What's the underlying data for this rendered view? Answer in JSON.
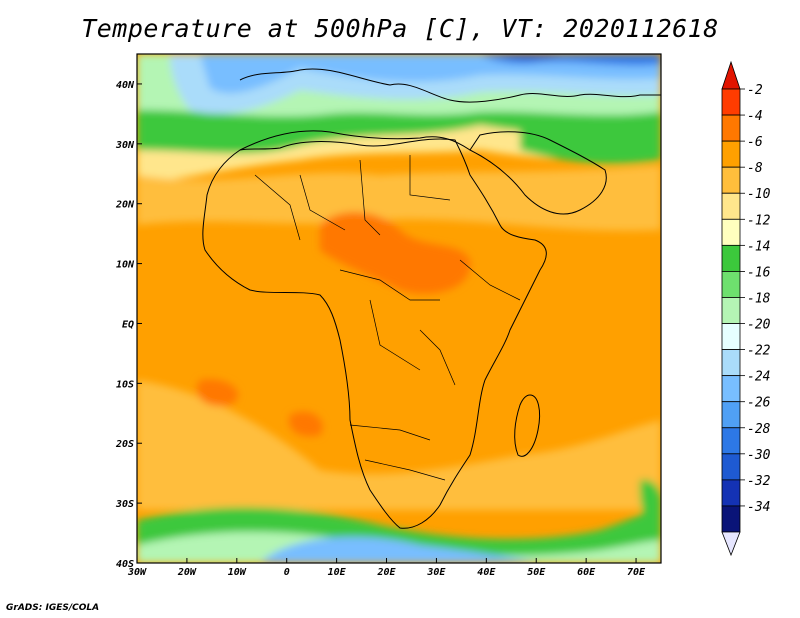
{
  "title": "Temperature at 500hPa [C], VT: 2020112618",
  "credit": "GrADS: IGES/COLA",
  "map": {
    "lon_range": [
      -30,
      75
    ],
    "lat_range": [
      -40,
      45
    ],
    "lon_ticks": [
      {
        "value": -30,
        "label": "30W"
      },
      {
        "value": -20,
        "label": "20W"
      },
      {
        "value": -10,
        "label": "10W"
      },
      {
        "value": 0,
        "label": "0"
      },
      {
        "value": 10,
        "label": "10E"
      },
      {
        "value": 20,
        "label": "20E"
      },
      {
        "value": 30,
        "label": "30E"
      },
      {
        "value": 40,
        "label": "40E"
      },
      {
        "value": 50,
        "label": "50E"
      },
      {
        "value": 60,
        "label": "60E"
      },
      {
        "value": 70,
        "label": "70E"
      }
    ],
    "lat_ticks": [
      {
        "value": 40,
        "label": "40N"
      },
      {
        "value": 30,
        "label": "30N"
      },
      {
        "value": 20,
        "label": "20N"
      },
      {
        "value": 10,
        "label": "10N"
      },
      {
        "value": 0,
        "label": "EQ"
      },
      {
        "value": -10,
        "label": "10S"
      },
      {
        "value": -20,
        "label": "20S"
      },
      {
        "value": -30,
        "label": "30S"
      },
      {
        "value": -40,
        "label": "40S"
      }
    ]
  },
  "colorbar": {
    "levels": [
      {
        "label": "-2",
        "color": "#ff3c00"
      },
      {
        "label": "-4",
        "color": "#ff7800"
      },
      {
        "label": "-6",
        "color": "#ffa000"
      },
      {
        "label": "-8",
        "color": "#ffbe3c"
      },
      {
        "label": "-10",
        "color": "#ffe68c"
      },
      {
        "label": "-12",
        "color": "#ffffbe"
      },
      {
        "label": "-14",
        "color": "#3cc83c"
      },
      {
        "label": "-16",
        "color": "#6ee06e"
      },
      {
        "label": "-18",
        "color": "#b4f5b4"
      },
      {
        "label": "-20",
        "color": "#e6ffff"
      },
      {
        "label": "-22",
        "color": "#aadcfa"
      },
      {
        "label": "-24",
        "color": "#78beff"
      },
      {
        "label": "-26",
        "color": "#50a0f5"
      },
      {
        "label": "-28",
        "color": "#2d78e6"
      },
      {
        "label": "-30",
        "color": "#1e5ad2"
      },
      {
        "label": "-32",
        "color": "#1432b4"
      },
      {
        "label": "-34",
        "color": "#0a1478"
      }
    ],
    "top_arrow_color": "#e11400",
    "bottom_arrow_color": "#e6e6ff"
  }
}
